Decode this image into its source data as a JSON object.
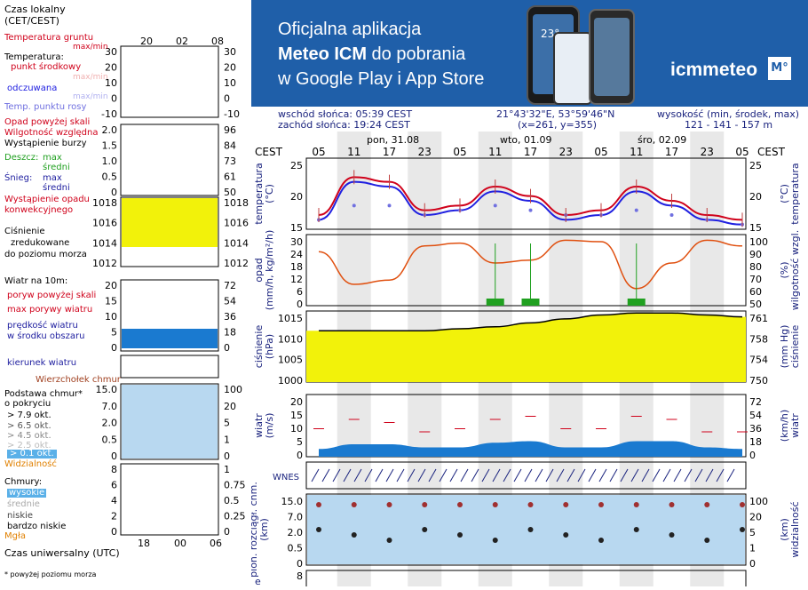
{
  "banner": {
    "line1": "Oficjalna aplikacja",
    "line2_bold": "Meteo ICM",
    "line2_rest": " do pobrania",
    "line3": "w Google Play i App Store",
    "logo_text": "icmmeteo",
    "logo_badge": "M°",
    "phone_temp": "23°"
  },
  "info": {
    "sunrise": "wschód słońca: 05:39 CEST",
    "sunset": "zachód słońca: 19:24 CEST",
    "coords": "21°43'32\"E, 53°59'46\"N",
    "grid": "(x=261,  y=355)",
    "height_label": "wysokość (min, środek, max)",
    "height_values": "121 - 141 - 157 m"
  },
  "legend": {
    "local_time": "Czas lokalny",
    "local_time_zone": "(CET/CEST)",
    "local_hours": [
      "20",
      "02",
      "08"
    ],
    "soil_temp": "Temperatura gruntu",
    "soil_temp_sub": "max/min",
    "temperature": "Temperatura:",
    "dew_mid": "punkt środkowy",
    "maxmin": "max/min",
    "feels": "odczuwana",
    "maxmin2": "max/min",
    "dewpoint": "Temp. punktu rosy",
    "temp_ticks": [
      "30",
      "20",
      "10",
      "0",
      "-10"
    ],
    "precip_above": "Opad powyżej skali",
    "humidity": "Wilgotność względna",
    "storm": "Wystąpienie burzy",
    "rain": "Deszcz:",
    "rain_max": "max",
    "rain_avg": "średni",
    "snow": "Śnieg:",
    "snow_max": "max",
    "snow_avg": "średni",
    "precip_occ": "Wystąpienie opadu",
    "precip_occ2": "konwekcyjnego",
    "precip_ticks": [
      "2.0",
      "1.5",
      "1.0",
      "0.5",
      "0"
    ],
    "hum_ticks": [
      "96",
      "84",
      "73",
      "61",
      "50"
    ],
    "pressure_title": "Ciśnienie",
    "pressure_sub1": "zredukowane",
    "pressure_sub2": "do poziomu morza",
    "press_ticks": [
      "1018",
      "1016",
      "1014",
      "1012"
    ],
    "wind_title": "Wiatr na 10m:",
    "gust_above": "poryw powyżej skali",
    "gust_max": "max porywy wiatru",
    "wind_speed": "prędkość wiatru",
    "wind_speed2": "w środku obszaru",
    "wind_ticks_l": [
      "20",
      "15",
      "10",
      "5",
      "0"
    ],
    "wind_ticks_r": [
      "72",
      "54",
      "36",
      "18",
      "0"
    ],
    "wind_dir": "kierunek wiatru",
    "cloud_top": "Wierzchołek chmur",
    "cloud_base": "Podstawa chmur*",
    "cloud_cover": "o pokryciu",
    "okt": [
      "> 7.9 okt.",
      "> 6.5 okt.",
      "> 4.5 okt.",
      "> 2.5 okt.",
      "> 0.1 okt."
    ],
    "visibility": "Widzialność",
    "cloud_ticks_l": [
      "15.0",
      "7.0",
      "2.0",
      "0.5",
      "0"
    ],
    "cloud_ticks_r": [
      "100",
      "20",
      "5",
      "1",
      "0"
    ],
    "clouds": "Chmury:",
    "high": "wysokie",
    "mid": "średnie",
    "low": "niskie",
    "very_low": "bardzo niskie",
    "fog": "Mgła",
    "cl_ticks_l": [
      "8",
      "6",
      "4",
      "2",
      "0"
    ],
    "cl_ticks_r": [
      "1",
      "0.75",
      "0.5",
      "0.25",
      "0"
    ],
    "utc": "Czas uniwersalny (UTC)",
    "utc_hours": [
      "18",
      "00",
      "06"
    ],
    "footnote": "* powyżej poziomu morza"
  },
  "main": {
    "tz": "CEST",
    "days": [
      "pon, 31.08",
      "wto, 01.09",
      "śro, 02.09"
    ],
    "hours": [
      "05",
      "11",
      "17",
      "23",
      "05",
      "11",
      "17",
      "23",
      "05",
      "11",
      "17",
      "23",
      "05"
    ],
    "temp_label": "temperatura",
    "temp_unit": "(°C)",
    "temp_ticks": [
      "25",
      "20",
      "15"
    ],
    "precip_label": "opad",
    "precip_unit": "(mm/h, kg/m²/h)",
    "precip_ticks": [
      "30",
      "24",
      "18",
      "12",
      "6",
      "0"
    ],
    "hum_label": "wilgotność wzgl.",
    "hum_unit": "(%)",
    "hum_ticks": [
      "100",
      "90",
      "80",
      "70",
      "60",
      "50"
    ],
    "press_label": "ciśnienie",
    "press_unit": "(hPa)",
    "press_ticks": [
      "1015",
      "1010",
      "1005",
      "1000"
    ],
    "press_unit_r": "(mm Hg)",
    "press_ticks_r": [
      "761",
      "758",
      "754",
      "750"
    ],
    "wind_label": "wiatr",
    "wind_unit": "(m/s)",
    "wind_ticks": [
      "20",
      "15",
      "10",
      "5",
      "0"
    ],
    "wind_unit_r": "(km/h)",
    "wind_ticks_r": [
      "72",
      "54",
      "36",
      "18",
      "0"
    ],
    "wind_dir_label": "WNES",
    "cloud_label": "pion. rozciągł. chm.",
    "cloud_unit": "(km)",
    "cloud_ticks": [
      "15.0",
      "7.0",
      "2.0",
      "0.5",
      "0"
    ],
    "vis_label": "widzialność",
    "vis_unit": "(km)",
    "vis_ticks": [
      "100",
      "20",
      "5",
      "1",
      "0"
    ],
    "bottom_tick": "8",
    "bottom_label": "e"
  },
  "colors": {
    "temp_line": "#d0021b",
    "feels_line": "#2020e0",
    "dewpoint": "#7070e0",
    "humidity": "#e05010",
    "rain": "#20a020",
    "pressure_fill": "#f2f20a",
    "wind_fill": "#1a7ad0",
    "banner": "#1f5fa9",
    "sky": "#b8d8f0"
  },
  "chart_data": [
    {
      "type": "line",
      "title": "temperatura",
      "ylabel": "temperatura (°C)",
      "ylim": [
        12,
        27
      ],
      "x": [
        "05",
        "11",
        "17",
        "23",
        "05",
        "11",
        "17",
        "23",
        "05",
        "11",
        "17",
        "23",
        "05"
      ],
      "series": [
        {
          "name": "temperatura",
          "values": [
            15,
            23,
            22,
            16,
            17,
            21,
            19,
            15,
            16,
            21,
            18,
            15,
            14
          ]
        },
        {
          "name": "odczuwana",
          "values": [
            14,
            22,
            21,
            15,
            16,
            20,
            18,
            14,
            15,
            20,
            17,
            14,
            13
          ]
        },
        {
          "name": "punkt rosy",
          "values": [
            14,
            17,
            17,
            15,
            16,
            17,
            16,
            15,
            15,
            16,
            15,
            14,
            13
          ]
        }
      ]
    },
    {
      "type": "line",
      "title": "wilgotność wzgl.",
      "ylabel": "(%)",
      "ylim": [
        50,
        100
      ],
      "x": [
        "05",
        "11",
        "17",
        "23",
        "05",
        "11",
        "17",
        "23",
        "05",
        "11",
        "17",
        "23",
        "05"
      ],
      "values": [
        88,
        65,
        68,
        92,
        94,
        80,
        82,
        96,
        95,
        62,
        80,
        96,
        92
      ]
    },
    {
      "type": "area",
      "title": "ciśnienie",
      "ylabel": "(hPa)",
      "ylim": [
        1000,
        1018
      ],
      "x": [
        "05",
        "11",
        "17",
        "23",
        "05",
        "11",
        "17",
        "23",
        "05",
        "11",
        "17",
        "23",
        "05"
      ],
      "values": [
        1013,
        1013,
        1013,
        1013,
        1013.5,
        1014,
        1015,
        1016,
        1017,
        1017.5,
        1017.5,
        1017,
        1016.5
      ]
    },
    {
      "type": "area",
      "title": "wiatr",
      "ylabel": "(m/s)",
      "ylim": [
        0,
        20
      ],
      "x": [
        "05",
        "11",
        "17",
        "23",
        "05",
        "11",
        "17",
        "23",
        "05",
        "11",
        "17",
        "23",
        "05"
      ],
      "series": [
        {
          "name": "prędkość wiatru",
          "values": [
            2.5,
            4,
            4,
            3,
            3,
            4.5,
            5,
            3,
            3,
            5,
            5,
            3,
            2.5
          ]
        },
        {
          "name": "max porywy wiatru",
          "values": [
            9,
            12,
            11,
            8,
            9,
            12,
            13,
            9,
            9,
            13,
            12,
            8,
            8
          ]
        }
      ]
    }
  ]
}
